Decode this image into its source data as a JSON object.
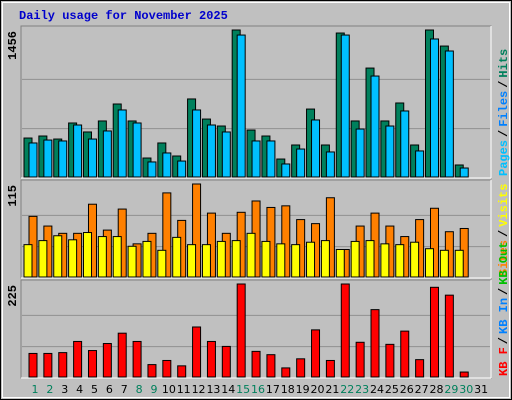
{
  "title": "Daily usage for November 2025",
  "separator": "/",
  "chart_data": [
    {
      "type": "bar",
      "ylim": [
        0,
        1456
      ],
      "yticks": [
        1456
      ],
      "legend": [
        {
          "name": "Pages",
          "color": "#00c0ff"
        },
        {
          "name": "Files",
          "color": "#0080ff"
        },
        {
          "name": "Hits",
          "color": "#00805c"
        }
      ],
      "series": [
        {
          "color": "#00805c",
          "offset": 0,
          "values": [
            386,
            406,
            376,
            535,
            446,
            555,
            723,
            555,
            188,
            337,
            208,
            773,
            574,
            505,
            1456,
            465,
            406,
            178,
            317,
            673,
            317,
            1426,
            555,
            1079,
            555,
            733,
            317,
            1456,
            1297,
            119,
            null
          ]
        },
        {
          "color": "#00c0ff",
          "offset": 5,
          "values": [
            337,
            366,
            357,
            515,
            376,
            456,
            664,
            535,
            149,
            238,
            158,
            664,
            515,
            446,
            1406,
            357,
            357,
            129,
            277,
            565,
            248,
            1406,
            475,
            1000,
            505,
            654,
            258,
            1367,
            1248,
            89,
            null
          ]
        }
      ]
    },
    {
      "type": "bar",
      "ylim": [
        0,
        115
      ],
      "yticks": [
        115
      ],
      "legend": [
        {
          "name": "Sites",
          "color": "#ff8000"
        },
        {
          "name": "Visits",
          "color": "#ffff00"
        }
      ],
      "series": [
        {
          "color": "#ff8000",
          "offset": 5,
          "values": [
            75,
            63,
            54,
            54,
            90,
            58,
            84,
            41,
            54,
            104,
            70,
            115,
            79,
            54,
            80,
            94,
            86,
            88,
            71,
            66,
            98,
            34,
            63,
            79,
            63,
            50,
            71,
            85,
            56,
            60,
            null
          ]
        },
        {
          "color": "#ffff00",
          "offset": 0,
          "values": [
            40,
            45,
            51,
            46,
            55,
            50,
            50,
            38,
            44,
            33,
            49,
            40,
            40,
            44,
            45,
            54,
            44,
            41,
            40,
            43,
            45,
            34,
            44,
            45,
            41,
            40,
            43,
            35,
            33,
            33,
            null
          ]
        }
      ]
    },
    {
      "type": "bar",
      "ylim": [
        0,
        225
      ],
      "yticks": [
        225
      ],
      "legend": [
        {
          "name": "KB F",
          "color": "#ff0000"
        },
        {
          "name": "KB In",
          "color": "#0080ff"
        },
        {
          "name": "KB Out",
          "color": "#00c000"
        }
      ],
      "series": [
        {
          "color": "#ff0000",
          "offset": 5,
          "values": [
            57,
            57,
            59,
            86,
            64,
            81,
            106,
            86,
            30,
            40,
            27,
            121,
            86,
            74,
            225,
            62,
            54,
            22,
            44,
            114,
            40,
            225,
            84,
            163,
            79,
            111,
            42,
            217,
            198,
            12,
            null
          ]
        }
      ],
      "categories": [
        "1",
        "2",
        "3",
        "4",
        "5",
        "6",
        "7",
        "8",
        "9",
        "10",
        "11",
        "12",
        "13",
        "14",
        "15",
        "16",
        "17",
        "18",
        "19",
        "20",
        "21",
        "22",
        "23",
        "24",
        "25",
        "26",
        "27",
        "28",
        "29",
        "30",
        "31"
      ],
      "category_colors": [
        "#00805c",
        "#00805c",
        "#000000",
        "#000000",
        "#000000",
        "#000000",
        "#000000",
        "#00805c",
        "#00805c",
        "#000000",
        "#000000",
        "#000000",
        "#000000",
        "#000000",
        "#00805c",
        "#00805c",
        "#000000",
        "#000000",
        "#000000",
        "#000000",
        "#000000",
        "#00805c",
        "#00805c",
        "#000000",
        "#000000",
        "#000000",
        "#000000",
        "#000000",
        "#00805c",
        "#00805c",
        "#000000"
      ]
    }
  ]
}
